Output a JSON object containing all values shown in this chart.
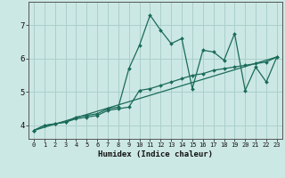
{
  "xlabel": "Humidex (Indice chaleur)",
  "bg_color": "#cce8e4",
  "line_color": "#1a6b5a",
  "grid_color": "#aacfcc",
  "xlim": [
    -0.5,
    23.5
  ],
  "ylim": [
    3.6,
    7.7
  ],
  "yticks": [
    4,
    5,
    6,
    7
  ],
  "xticks": [
    0,
    1,
    2,
    3,
    4,
    5,
    6,
    7,
    8,
    9,
    10,
    11,
    12,
    13,
    14,
    15,
    16,
    17,
    18,
    19,
    20,
    21,
    22,
    23
  ],
  "line1_x": [
    0,
    1,
    2,
    3,
    4,
    5,
    6,
    7,
    8,
    9,
    10,
    11,
    12,
    13,
    14,
    15,
    16,
    17,
    18,
    19,
    20,
    21,
    22,
    23
  ],
  "line1_y": [
    3.85,
    4.0,
    4.05,
    4.1,
    4.25,
    4.3,
    4.35,
    4.5,
    4.55,
    5.7,
    6.4,
    7.3,
    6.85,
    6.45,
    6.6,
    5.1,
    6.25,
    6.2,
    5.95,
    6.75,
    5.05,
    5.75,
    5.3,
    6.05
  ],
  "line2_x": [
    0,
    1,
    2,
    3,
    4,
    5,
    6,
    7,
    8,
    9,
    10,
    11,
    12,
    13,
    14,
    15,
    16,
    17,
    18,
    19,
    20,
    21,
    22,
    23
  ],
  "line2_y": [
    3.85,
    4.0,
    4.05,
    4.1,
    4.2,
    4.25,
    4.3,
    4.45,
    4.5,
    4.55,
    5.05,
    5.1,
    5.2,
    5.3,
    5.4,
    5.5,
    5.55,
    5.65,
    5.7,
    5.75,
    5.8,
    5.85,
    5.9,
    6.05
  ],
  "line3_x": [
    0,
    23
  ],
  "line3_y": [
    3.85,
    6.05
  ]
}
